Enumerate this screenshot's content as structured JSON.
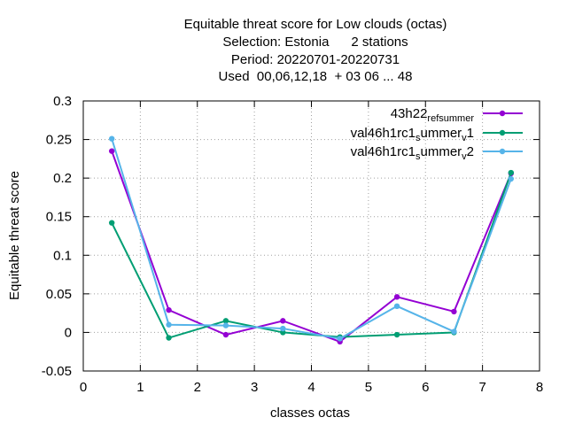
{
  "chart_data": {
    "type": "line",
    "title_lines": [
      "Equitable threat score  for Low clouds (octas)",
      "Selection: Estonia      2 stations",
      "Period: 20220701-20220731",
      "Used  00,06,12,18  + 03 06 ... 48"
    ],
    "xlabel": "classes octas",
    "ylabel": "Equitable threat score",
    "xlim": [
      0,
      8
    ],
    "ylim": [
      -0.05,
      0.3
    ],
    "xticks": [
      0,
      1,
      2,
      3,
      4,
      5,
      6,
      7,
      8
    ],
    "yticks": [
      -0.05,
      0,
      0.05,
      0.1,
      0.15,
      0.2,
      0.25,
      0.3
    ],
    "ytick_labels": [
      "-0.05",
      "0",
      "0.05",
      "0.1",
      "0.15",
      "0.2",
      "0.25",
      "0.3"
    ],
    "grid": true,
    "legend_position": "top-right",
    "x": [
      0.5,
      1.5,
      2.5,
      3.5,
      4.5,
      5.5,
      6.5,
      7.5
    ],
    "series": [
      {
        "name": "43h22_ref_summer",
        "legend": {
          "base": "43h22",
          "sub1": "ref",
          "mid": "",
          "sub2": "summer",
          "tail": "",
          "sub3": ""
        },
        "color": "#9400d3",
        "values": [
          0.235,
          0.029,
          -0.003,
          0.015,
          -0.012,
          0.046,
          0.027,
          0.206
        ]
      },
      {
        "name": "val46h1rc1_summer_v1",
        "legend": {
          "base": "val46h1rc1",
          "sub1": "s",
          "mid": "ummer",
          "sub2": "v",
          "tail": "1",
          "sub3": ""
        },
        "color": "#009e73",
        "values": [
          0.142,
          -0.007,
          0.015,
          0.0,
          -0.006,
          -0.003,
          0.0,
          0.207
        ]
      },
      {
        "name": "val46h1rc1_summer_v2",
        "legend": {
          "base": "val46h1rc1",
          "sub1": "s",
          "mid": "ummer",
          "sub2": "v",
          "tail": "2",
          "sub3": ""
        },
        "color": "#56b4e9",
        "values": [
          0.251,
          0.01,
          0.009,
          0.005,
          -0.008,
          0.034,
          0.001,
          0.199
        ]
      }
    ]
  }
}
